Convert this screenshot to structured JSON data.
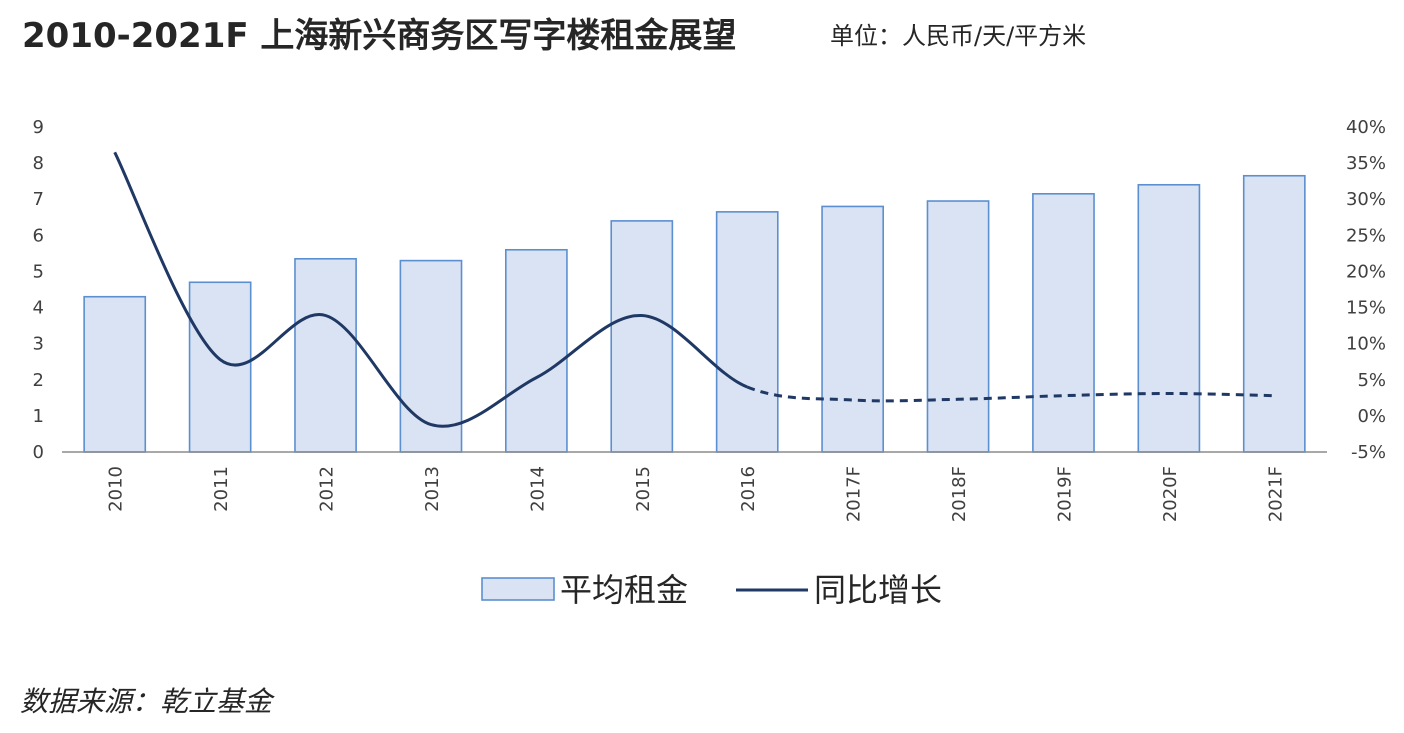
{
  "header": {
    "title": "2010-2021F 上海新兴商务区写字楼租金展望",
    "unit": "单位：人民币/天/平方米"
  },
  "footer": {
    "source": "数据来源：乾立基金"
  },
  "colors": {
    "bar_fill": "#dae3f3",
    "bar_stroke": "#5b8fd0",
    "line": "#1f3864",
    "axis": "#8c8c8c"
  },
  "chart_data": {
    "type": "bar",
    "categories": [
      "2010",
      "2011",
      "2012",
      "2013",
      "2014",
      "2015",
      "2016",
      "2017F",
      "2018F",
      "2019F",
      "2020F",
      "2021F"
    ],
    "series": [
      {
        "name": "平均租金",
        "type": "bar",
        "axis": "left",
        "values": [
          4.3,
          4.7,
          5.35,
          5.3,
          5.6,
          6.4,
          6.65,
          6.8,
          6.95,
          7.15,
          7.4,
          7.65
        ]
      },
      {
        "name": "同比增长",
        "type": "line",
        "axis": "right",
        "unit": "%",
        "values": [
          36.5,
          7.8,
          13.9,
          -1.2,
          5.3,
          13.9,
          4.0,
          2.2,
          2.3,
          2.8,
          3.1,
          2.8
        ],
        "dashed_from": "2016"
      }
    ],
    "y_left": {
      "ticks": [
        "0",
        "1",
        "2",
        "3",
        "4",
        "5",
        "6",
        "7",
        "8",
        "9"
      ],
      "min": 0,
      "max": 9
    },
    "y_right": {
      "ticks": [
        "-5%",
        "0%",
        "5%",
        "10%",
        "15%",
        "20%",
        "25%",
        "30%",
        "35%",
        "40%"
      ],
      "min": -5,
      "max": 40
    },
    "legend": {
      "position": "bottom",
      "bar_label": "平均租金",
      "line_label": "同比增长"
    },
    "grid": false
  }
}
